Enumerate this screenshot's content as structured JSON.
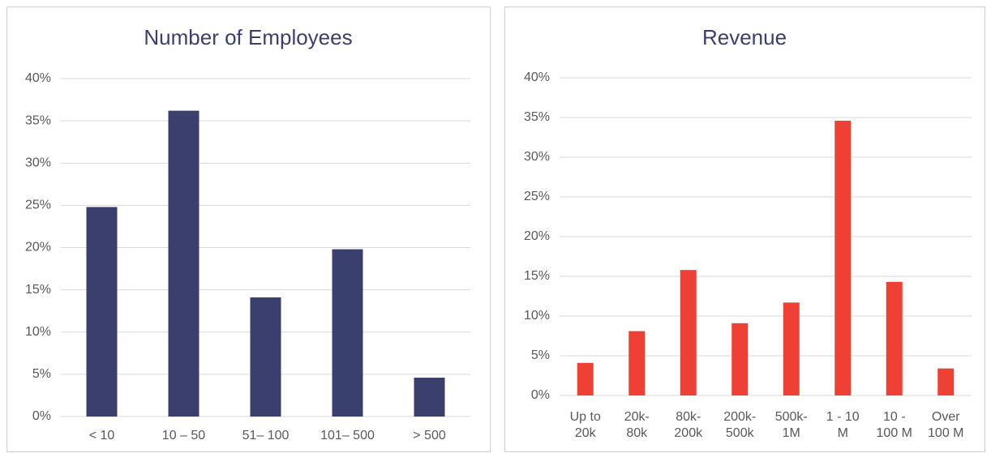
{
  "chart_data": [
    {
      "type": "bar",
      "title": "Number of Employees",
      "categories": [
        [
          "< 10"
        ],
        [
          "10 – 50"
        ],
        [
          "51– 100"
        ],
        [
          "101– 500"
        ],
        [
          "> 500"
        ]
      ],
      "values": [
        24.8,
        36.2,
        14.1,
        19.8,
        4.6
      ],
      "color": "#3b3f6e",
      "ylim": [
        0,
        40
      ],
      "yticks": [
        {
          "value": 0,
          "label": "0%"
        },
        {
          "value": 5,
          "label": "5%"
        },
        {
          "value": 10,
          "label": "10%"
        },
        {
          "value": 15,
          "label": "15%"
        },
        {
          "value": 20,
          "label": "20%"
        },
        {
          "value": 25,
          "label": "25%"
        },
        {
          "value": 30,
          "label": "30%"
        },
        {
          "value": 35,
          "label": "35%"
        },
        {
          "value": 40,
          "label": "40%"
        }
      ],
      "grid": true
    },
    {
      "type": "bar",
      "title": "Revenue",
      "categories": [
        [
          "Up to",
          "20k"
        ],
        [
          "20k-",
          "80k"
        ],
        [
          "80k-",
          "200k"
        ],
        [
          "200k-",
          "500k"
        ],
        [
          "500k-",
          "1M"
        ],
        [
          "1 - 10",
          "M"
        ],
        [
          "10 -",
          "100 M"
        ],
        [
          "Over",
          "100 M"
        ]
      ],
      "values": [
        4.1,
        8.1,
        15.8,
        9.1,
        11.7,
        34.6,
        14.3,
        3.4
      ],
      "color": "#ee4035",
      "ylim": [
        0,
        40
      ],
      "yticks": [
        {
          "value": 0,
          "label": "0%"
        },
        {
          "value": 5,
          "label": "5%"
        },
        {
          "value": 10,
          "label": "10%"
        },
        {
          "value": 15,
          "label": "15%"
        },
        {
          "value": 20,
          "label": "20%"
        },
        {
          "value": 25,
          "label": "25%"
        },
        {
          "value": 30,
          "label": "30%"
        },
        {
          "value": 35,
          "label": "35%"
        },
        {
          "value": 40,
          "label": "40%"
        }
      ],
      "grid": true
    }
  ]
}
